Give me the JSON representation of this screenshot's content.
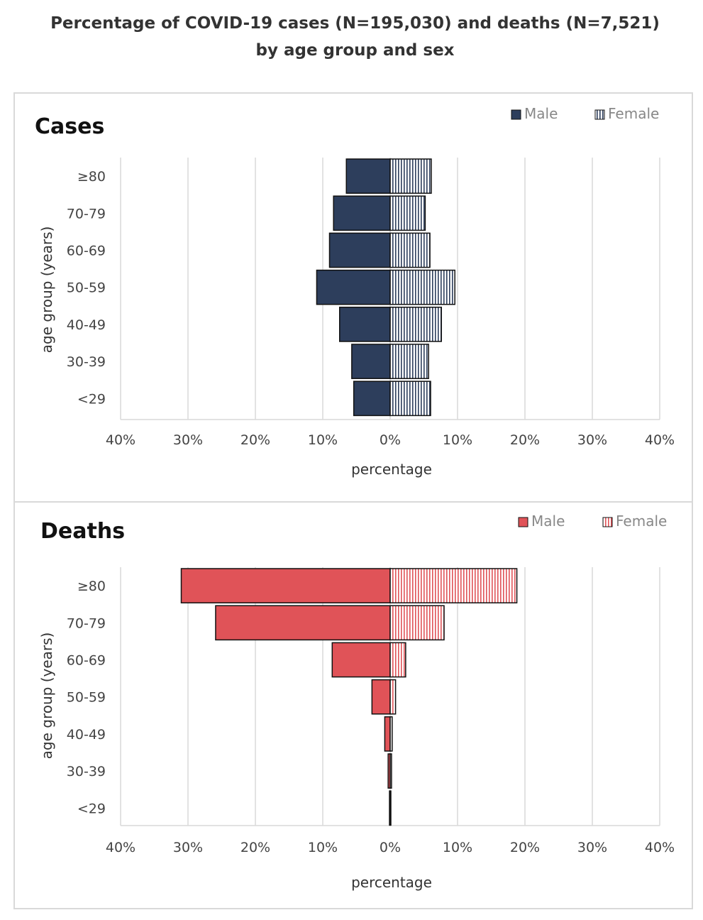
{
  "title": {
    "line1": "Percentage of COVID-19 cases (N=195,030) and deaths (N=7,521)",
    "line2": "by age group and sex"
  },
  "colors": {
    "cases_male": "#2d3e5c",
    "cases_female_stripe": "#2d3e5c",
    "deaths_male": "#e05358",
    "deaths_female_stripe": "#e05358"
  },
  "chart_data": [
    {
      "type": "bar",
      "orientation": "horizontal",
      "title": "Cases",
      "categories": [
        "≥80",
        "70-79",
        "60-69",
        "50-59",
        "40-49",
        "30-39",
        "<29"
      ],
      "series": [
        {
          "name": "Male",
          "values": [
            6.5,
            8.4,
            9.0,
            10.9,
            7.5,
            5.7,
            5.4
          ]
        },
        {
          "name": "Female",
          "values": [
            6.1,
            5.2,
            5.9,
            9.6,
            7.6,
            5.7,
            6.0
          ]
        }
      ],
      "xlabel": "percentage",
      "ylabel": "age group (years)",
      "xlim": [
        -40,
        40
      ],
      "xticks": [
        "40%",
        "30%",
        "20%",
        "10%",
        "0%",
        "10%",
        "20%",
        "30%",
        "40%"
      ],
      "grid": true,
      "legend": "top-right"
    },
    {
      "type": "bar",
      "orientation": "horizontal",
      "title": "Deaths",
      "categories": [
        "≥80",
        "70-79",
        "60-69",
        "50-59",
        "40-49",
        "30-39",
        "<29"
      ],
      "series": [
        {
          "name": "Male",
          "values": [
            31.0,
            25.9,
            8.6,
            2.7,
            0.8,
            0.3,
            0.1
          ]
        },
        {
          "name": "Female",
          "values": [
            18.8,
            8.0,
            2.3,
            0.8,
            0.3,
            0.2,
            0.1
          ]
        }
      ],
      "xlabel": "percentage",
      "ylabel": "age group (years)",
      "xlim": [
        -40,
        40
      ],
      "xticks": [
        "40%",
        "30%",
        "20%",
        "10%",
        "0%",
        "10%",
        "20%",
        "30%",
        "40%"
      ],
      "grid": true,
      "legend": "top-right"
    }
  ]
}
